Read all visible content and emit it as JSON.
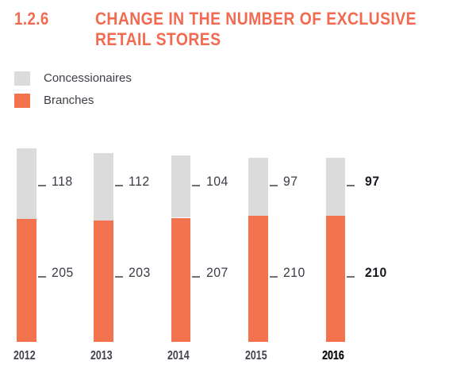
{
  "header": {
    "section_number": "1.2.6",
    "title_line1": "CHANGE IN THE NUMBER OF EXCLUSIVE",
    "title_line2": "RETAIL STORES"
  },
  "legend": {
    "items": [
      {
        "label": "Concessionaires",
        "color": "#DBDBDB"
      },
      {
        "label": "Branches",
        "color": "#F2734D"
      }
    ]
  },
  "chart_data": {
    "type": "bar",
    "stacked": true,
    "title": "1.2.6 CHANGE IN THE NUMBER OF EXCLUSIVE RETAIL STORES",
    "categories": [
      "2012",
      "2013",
      "2014",
      "2015",
      "2016"
    ],
    "series": [
      {
        "name": "Branches",
        "color": "#F2734D",
        "values": [
          205,
          203,
          207,
          210,
          210
        ]
      },
      {
        "name": "Concessionaires",
        "color": "#DBDBDB",
        "values": [
          118,
          112,
          104,
          97,
          97
        ]
      }
    ],
    "totals": [
      323,
      315,
      311,
      307,
      307
    ],
    "highlight_category": "2016",
    "value_labels": true,
    "legend_position": "top-left",
    "grid": false,
    "xlabel": "",
    "ylabel": ""
  },
  "colors": {
    "title": "#F26A50",
    "branches": "#F2734D",
    "concessionaires": "#DBDBDB",
    "value_text": "#3B3B45",
    "value_text_bold": "#17171E",
    "year_text": "#41414B",
    "year_text_bold": "#0B0B10",
    "tick": "#6E6F71"
  }
}
